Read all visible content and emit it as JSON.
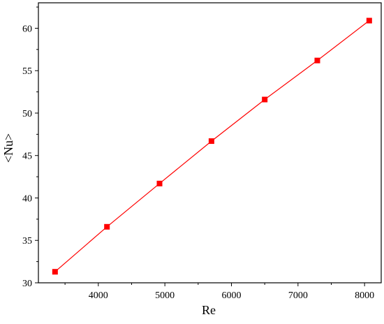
{
  "chart_data": {
    "type": "line",
    "title": "",
    "xlabel": "Re",
    "ylabel": "<Nu>",
    "xlim": [
      3100,
      8250
    ],
    "ylim": [
      30,
      63
    ],
    "xticks": [
      4000,
      5000,
      6000,
      7000,
      8000
    ],
    "yticks": [
      30,
      35,
      40,
      45,
      50,
      55,
      60
    ],
    "grid": false,
    "legend": "none",
    "color": "#ff0000",
    "marker": "square",
    "series": [
      {
        "x": [
          3350,
          4130,
          4920,
          5700,
          6500,
          7290,
          8070
        ],
        "y": [
          31.3,
          36.6,
          41.7,
          46.7,
          51.6,
          56.2,
          60.9
        ]
      }
    ]
  }
}
